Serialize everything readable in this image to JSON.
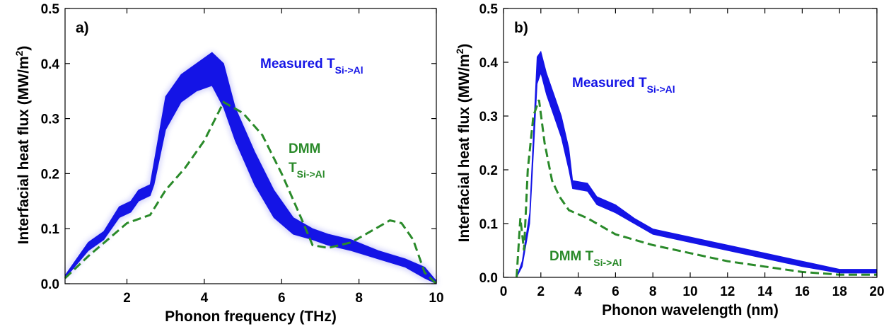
{
  "chart_data": [
    {
      "type": "area",
      "panel_label": "a)",
      "xlabel": "Phonon frequency (THz)",
      "ylabel": "Interfacial heat flux (MW/m",
      "ylabel_sup": "2",
      "ylabel_close": ")",
      "xlim": [
        0.4,
        10
      ],
      "ylim": [
        0,
        0.5
      ],
      "xticks": [
        2,
        4,
        6,
        8,
        10
      ],
      "yticks": [
        "0.0",
        "0.1",
        "0.2",
        "0.3",
        "0.4",
        "0.5"
      ],
      "grid": false,
      "colors": {
        "measured": "#1414e6",
        "dmm": "#2a8a2a"
      },
      "annotations": {
        "measured_main": "Measured T",
        "measured_sub": "Si->Al",
        "dmm_main": "DMM",
        "dmm_t": "T",
        "dmm_sub": "Si->Al"
      },
      "series": [
        {
          "type": "band",
          "x": [
            0.4,
            1.0,
            1.4,
            1.8,
            2.1,
            2.3,
            2.6,
            2.7,
            3.0,
            3.4,
            3.8,
            4.2,
            4.5,
            4.8,
            5.3,
            5.8,
            6.3,
            6.8,
            7.2,
            7.8,
            8.5,
            9.2,
            9.7,
            10.0
          ],
          "lower": [
            0.01,
            0.06,
            0.08,
            0.12,
            0.13,
            0.15,
            0.16,
            0.18,
            0.28,
            0.33,
            0.35,
            0.36,
            0.32,
            0.26,
            0.18,
            0.12,
            0.09,
            0.08,
            0.07,
            0.06,
            0.045,
            0.03,
            0.01,
            0.0
          ],
          "upper": [
            0.015,
            0.075,
            0.095,
            0.14,
            0.15,
            0.17,
            0.18,
            0.22,
            0.34,
            0.38,
            0.4,
            0.42,
            0.4,
            0.32,
            0.24,
            0.17,
            0.12,
            0.1,
            0.09,
            0.08,
            0.06,
            0.045,
            0.03,
            0.005
          ]
        },
        {
          "type": "dashed-line",
          "x": [
            0.4,
            1.0,
            1.5,
            2.0,
            2.6,
            3.0,
            3.5,
            4.0,
            4.5,
            5.0,
            5.5,
            6.0,
            6.5,
            6.8,
            7.2,
            7.8,
            8.3,
            8.8,
            9.1,
            9.4,
            9.7,
            10.0
          ],
          "y": [
            0.01,
            0.05,
            0.08,
            0.11,
            0.125,
            0.17,
            0.21,
            0.26,
            0.33,
            0.31,
            0.27,
            0.2,
            0.12,
            0.07,
            0.065,
            0.075,
            0.095,
            0.115,
            0.11,
            0.08,
            0.02,
            0.0
          ]
        }
      ]
    },
    {
      "type": "area",
      "panel_label": "b)",
      "xlabel": "Phonon wavelength (nm)",
      "ylabel": "Interfacial heat flux (MW/m",
      "ylabel_sup": "2",
      "ylabel_close": ")",
      "xlim": [
        0,
        20
      ],
      "ylim": [
        0,
        0.5
      ],
      "xticks": [
        0,
        2,
        4,
        6,
        8,
        10,
        12,
        14,
        16,
        18,
        20
      ],
      "yticks": [
        "0.0",
        "0.1",
        "0.2",
        "0.3",
        "0.4",
        "0.5"
      ],
      "grid": false,
      "colors": {
        "measured": "#1414e6",
        "dmm": "#2a8a2a"
      },
      "annotations": {
        "measured_main": "Measured T",
        "measured_sub": "Si->Al",
        "dmm_main": "DMM T",
        "dmm_sub": "Si->Al"
      },
      "series": [
        {
          "type": "band",
          "x": [
            0.7,
            1.0,
            1.4,
            1.8,
            2.0,
            2.3,
            2.7,
            3.1,
            3.5,
            3.7,
            4.5,
            5.0,
            6.0,
            7.0,
            8.0,
            10.0,
            12.0,
            14.0,
            16.0,
            18.0,
            20.0
          ],
          "lower": [
            0.0,
            0.02,
            0.1,
            0.36,
            0.38,
            0.34,
            0.3,
            0.26,
            0.2,
            0.165,
            0.16,
            0.135,
            0.12,
            0.1,
            0.08,
            0.065,
            0.05,
            0.035,
            0.02,
            0.008,
            0.008
          ],
          "upper": [
            0.0,
            0.03,
            0.12,
            0.41,
            0.42,
            0.38,
            0.34,
            0.3,
            0.24,
            0.18,
            0.175,
            0.15,
            0.135,
            0.11,
            0.09,
            0.075,
            0.06,
            0.045,
            0.03,
            0.015,
            0.015
          ]
        },
        {
          "type": "dashed-line",
          "x": [
            0.7,
            0.9,
            1.1,
            1.3,
            1.6,
            1.9,
            2.2,
            2.6,
            3.0,
            3.5,
            4.5,
            6.0,
            8.0,
            10.0,
            12.0,
            14.0,
            16.0,
            18.0,
            20.0
          ],
          "y": [
            0.0,
            0.11,
            0.05,
            0.2,
            0.3,
            0.33,
            0.25,
            0.18,
            0.15,
            0.125,
            0.11,
            0.08,
            0.06,
            0.045,
            0.03,
            0.02,
            0.01,
            0.005,
            0.005
          ]
        }
      ]
    }
  ]
}
